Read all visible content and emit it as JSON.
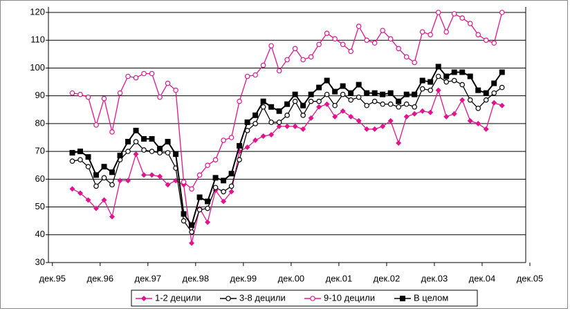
{
  "chart_data": {
    "type": "line",
    "x": [
      5,
      7,
      9,
      11,
      13,
      15,
      17,
      19,
      21,
      23,
      25,
      27,
      29,
      31,
      33,
      35,
      37,
      39,
      41,
      43,
      45,
      47,
      49,
      51,
      53,
      55,
      57,
      59,
      61,
      63,
      65,
      67,
      69,
      71,
      73,
      75,
      77,
      79,
      81,
      83,
      85,
      87,
      89,
      91,
      93,
      95,
      97,
      99,
      101,
      103,
      105,
      107,
      109,
      111,
      113
    ],
    "series": [
      {
        "name": "1-2 децили",
        "color": "#e0148c",
        "marker": "diamond",
        "values": [
          56.5,
          55,
          52.5,
          49.5,
          52.5,
          46.5,
          59.5,
          59.5,
          69,
          61.5,
          61.5,
          61,
          58,
          59.5,
          58,
          37,
          49.5,
          44.5,
          56,
          52,
          55.5,
          70,
          71.5,
          74,
          75.5,
          76,
          79,
          79,
          79,
          78,
          82,
          86,
          87,
          82.5,
          84.5,
          82.5,
          81,
          78,
          78,
          79,
          81,
          73,
          82.5,
          83.5,
          84.5,
          84,
          92,
          82.5,
          83.5,
          88.5,
          81,
          80,
          78,
          87.5,
          86.5
        ]
      },
      {
        "name": "3-8 децили",
        "color": "#000000",
        "marker": "open-circle",
        "values": [
          66.5,
          67,
          64.5,
          57.5,
          60.5,
          58,
          67,
          70,
          73.5,
          70.5,
          70,
          69.5,
          69.5,
          64,
          45,
          41,
          49,
          49.5,
          57,
          55.5,
          57.5,
          67,
          77.5,
          80,
          86,
          80.5,
          80.5,
          83,
          88,
          83,
          88,
          88,
          90.5,
          86.5,
          90.5,
          88.5,
          89.5,
          86.5,
          88,
          87,
          87,
          86,
          87,
          86,
          92.5,
          92,
          97,
          95,
          95.5,
          94,
          88.5,
          85.5,
          88.5,
          91,
          93
        ]
      },
      {
        "name": "9-10 децили",
        "color": "#e0148c",
        "marker": "open-circle",
        "values": [
          91,
          90.5,
          89.5,
          79.5,
          89,
          77,
          91,
          97,
          96.5,
          98,
          98,
          89.5,
          94.5,
          92,
          59,
          56.5,
          61.5,
          65,
          67,
          74,
          75,
          88,
          97,
          97.5,
          101,
          108,
          99,
          103,
          107,
          103,
          104,
          108.5,
          112.5,
          110.5,
          108.5,
          106,
          115,
          110,
          109,
          113.5,
          110.5,
          107,
          104,
          102,
          113,
          112,
          120,
          113,
          119.5,
          118,
          116,
          112,
          110,
          109,
          120
        ]
      },
      {
        "name": "В целом",
        "color": "#000000",
        "marker": "square",
        "values": [
          69.5,
          70,
          68,
          61.5,
          64.5,
          62.5,
          68.5,
          73.5,
          77.5,
          74.5,
          74.5,
          71,
          73.5,
          69,
          47.5,
          43.5,
          53.5,
          52,
          60.5,
          59.5,
          62,
          72,
          80.5,
          83,
          88,
          86,
          84.5,
          87,
          90.5,
          86.5,
          90.5,
          93,
          95.5,
          91.5,
          93.5,
          91,
          94,
          91,
          91,
          90.5,
          91,
          88,
          90.5,
          90.5,
          95.5,
          95,
          100.5,
          97,
          98.5,
          98.5,
          97,
          92,
          91,
          94.5,
          98.5
        ]
      }
    ],
    "xlim": [
      -1,
      120
    ],
    "xticks": [
      {
        "value": 0,
        "label": "дек.95"
      },
      {
        "value": 12,
        "label": "дек.96"
      },
      {
        "value": 24,
        "label": "дек.97"
      },
      {
        "value": 36,
        "label": "дек.98"
      },
      {
        "value": 48,
        "label": "дек.99"
      },
      {
        "value": 60,
        "label": "дек.00"
      },
      {
        "value": 72,
        "label": "дек.01"
      },
      {
        "value": 84,
        "label": "дек.02"
      },
      {
        "value": 96,
        "label": "дек.03"
      },
      {
        "value": 108,
        "label": "дек.04"
      },
      {
        "value": 120,
        "label": "дек.05"
      }
    ],
    "ylim": [
      30,
      120
    ],
    "yticks": [
      30,
      40,
      50,
      60,
      70,
      80,
      90,
      100,
      110,
      120
    ],
    "grid": true
  }
}
